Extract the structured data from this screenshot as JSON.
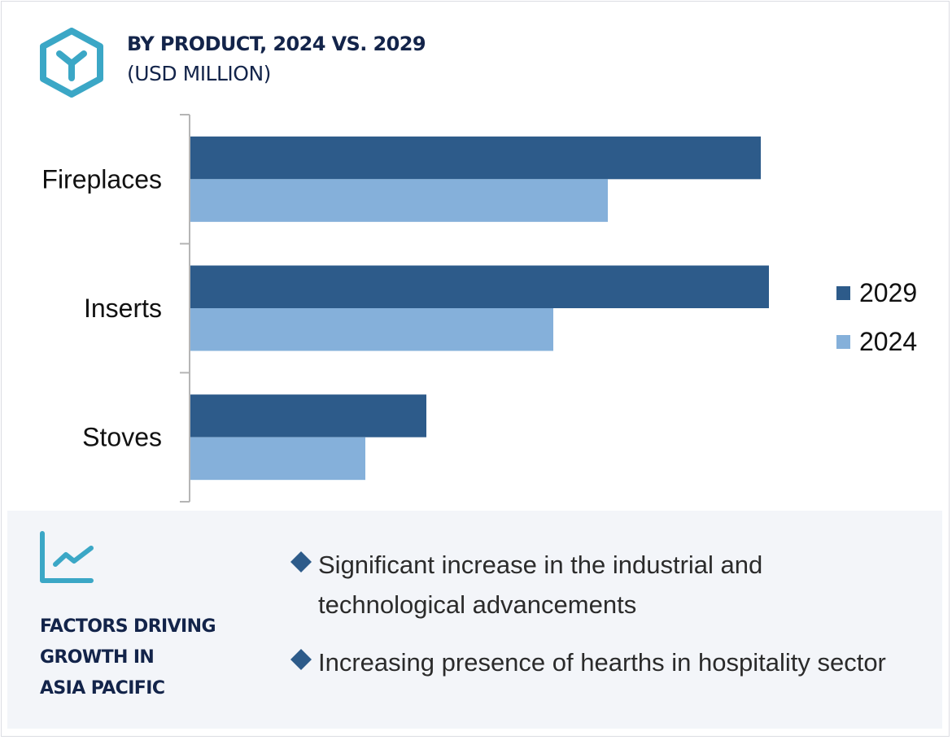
{
  "header": {
    "title": "BY PRODUCT, 2024 VS. 2029",
    "subtitle": "(USD MILLION)",
    "logo_icon": "hexagon-y-icon"
  },
  "colors": {
    "series_2029": "#2d5b8a",
    "series_2024": "#85b0da",
    "accent_teal": "#3ba7c6",
    "title_navy": "#13244a",
    "panel_bg": "#f3f5f9"
  },
  "chart_data": {
    "type": "bar",
    "orientation": "horizontal",
    "title": "BY PRODUCT, 2024 VS. 2029",
    "subtitle": "(USD MILLION)",
    "xlabel": "",
    "ylabel": "",
    "categories": [
      "Fireplaces",
      "Inserts",
      "Stoves"
    ],
    "series": [
      {
        "name": "2029",
        "values": [
          701,
          711,
          290
        ]
      },
      {
        "name": "2024",
        "values": [
          513,
          446,
          215
        ]
      }
    ],
    "value_note": "relative values; no numeric axis shown",
    "xlim": [
      0,
      780
    ],
    "grid": false,
    "legend": {
      "position": "right",
      "entries": [
        "2029",
        "2024"
      ]
    }
  },
  "factors": {
    "icon": "trend-chart-icon",
    "title_lines": [
      "FACTORS DRIVING",
      "GROWTH IN",
      "ASIA PACIFIC"
    ],
    "bullets": [
      "Significant increase in the industrial and technological advancements",
      "Increasing presence of hearths in hospitality sector"
    ]
  }
}
